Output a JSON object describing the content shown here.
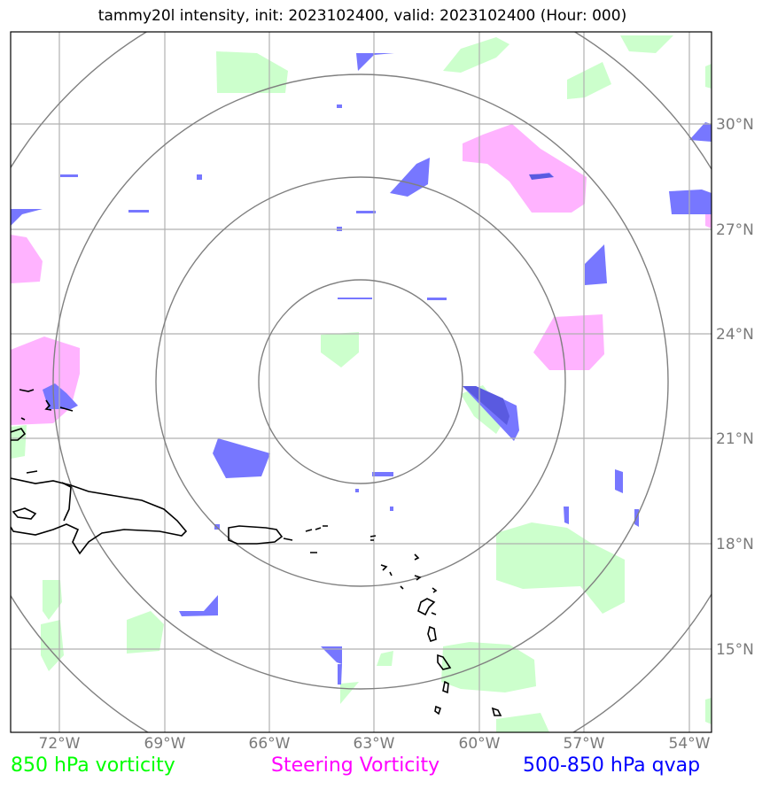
{
  "title": "tammy20l intensity, init: 2023102400, valid: 2023102400 (Hour: 000)",
  "legend": [
    {
      "label": "850 hPa vorticity",
      "color": "#00ff00"
    },
    {
      "label": "Steering Vorticity",
      "color": "#ff00ff"
    },
    {
      "label": "500-850 hPa qvap",
      "color": "#0000ff"
    }
  ],
  "axes": {
    "longitude_labels": [
      "72°W",
      "69°W",
      "66°W",
      "63°W",
      "60°W",
      "57°W",
      "54°W"
    ],
    "latitude_labels": [
      "30°N",
      "27°N",
      "24°N",
      "21°N",
      "18°N",
      "15°N"
    ]
  },
  "colors": {
    "vorticity_850": "#ccffcc",
    "steering_vorticity": "#ffb3ff",
    "qvap": "#7777ff",
    "range_rings": "#808080",
    "gridlines": "#b0b0b0",
    "coastline": "#000000"
  }
}
